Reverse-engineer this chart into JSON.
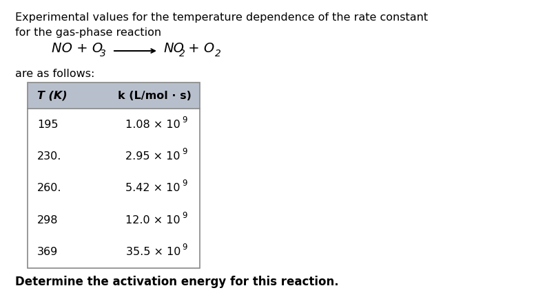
{
  "bg_color": "#ffffff",
  "text_color": "#000000",
  "intro_line1": "Experimental values for the temperature dependence of the rate constant",
  "intro_line2": "for the gas-phase reaction",
  "are_as_follows": "are as follows:",
  "table_header_T": "T (K)",
  "table_header_k": "k (L/mol · s)",
  "table_data": [
    [
      "195",
      "1.08 × 10",
      "9"
    ],
    [
      "230.",
      "2.95 × 10",
      "9"
    ],
    [
      "260.",
      "5.42 × 10",
      "9"
    ],
    [
      "298",
      "12.0 × 10",
      "9"
    ],
    [
      "369",
      "35.5 × 10",
      "9"
    ]
  ],
  "bottom_text": "Determine the activation energy for this reaction.",
  "table_header_bg": "#b8bfcc",
  "table_border_color": "#888888",
  "font_size_body": 11.5,
  "font_size_equation": 14,
  "font_size_table": 11.5,
  "font_size_bottom": 12
}
